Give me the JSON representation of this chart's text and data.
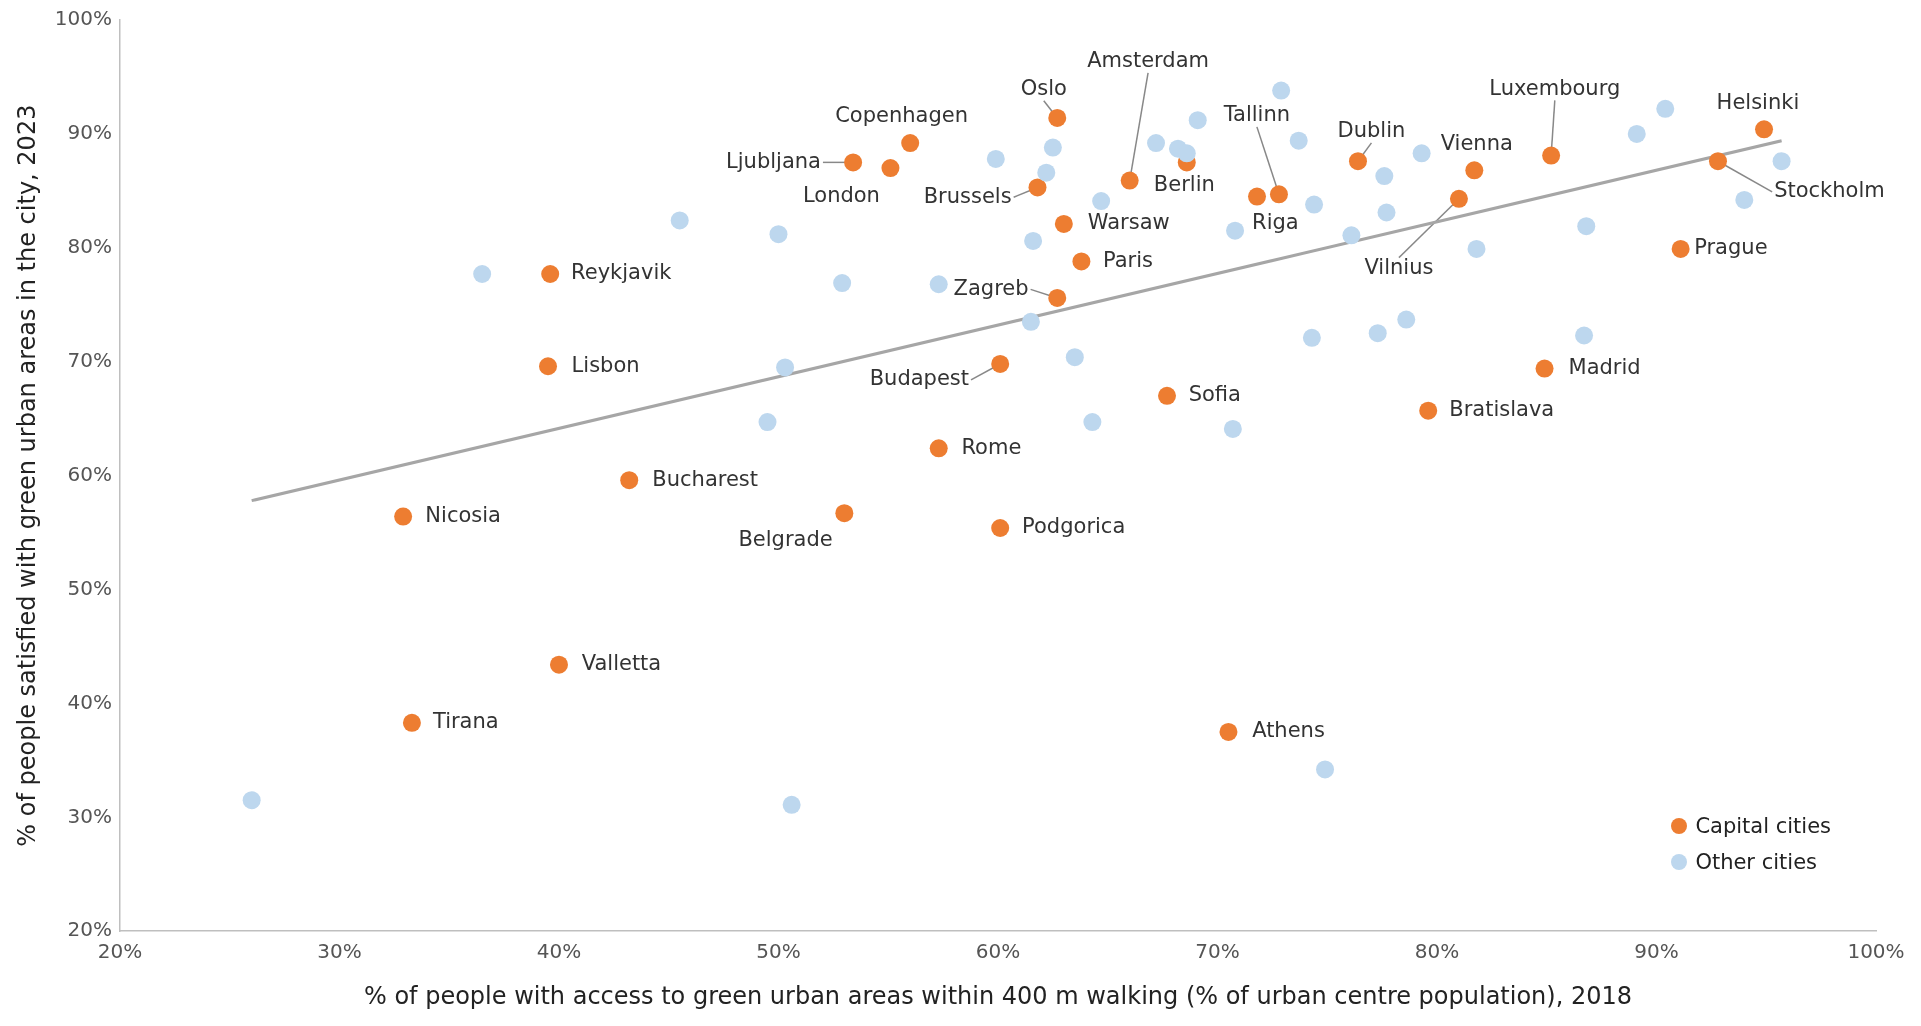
{
  "chart_data": {
    "type": "scatter",
    "xlabel": "% of people with access to green urban areas within 400 m walking (% of urban centre population), 2018",
    "ylabel": "% of people satisfied with green urban areas in the city, 2023",
    "xlim": [
      20,
      100
    ],
    "xticks": [
      {
        "value": 20,
        "label": "20%"
      },
      {
        "value": 30,
        "label": "30%"
      },
      {
        "value": 40,
        "label": "40%"
      },
      {
        "value": 50,
        "label": "50%"
      },
      {
        "value": 60,
        "label": "60%"
      },
      {
        "value": 70,
        "label": "70%"
      },
      {
        "value": 80,
        "label": "80%"
      },
      {
        "value": 90,
        "label": "90%"
      },
      {
        "value": 100,
        "label": "100%"
      }
    ],
    "ylim": [
      20,
      100
    ],
    "yticks": [
      {
        "value": 20,
        "label": "20%"
      },
      {
        "value": 30,
        "label": "30%"
      },
      {
        "value": 40,
        "label": "40%"
      },
      {
        "value": 50,
        "label": "50%"
      },
      {
        "value": 60,
        "label": "60%"
      },
      {
        "value": 70,
        "label": "70%"
      },
      {
        "value": 80,
        "label": "80%"
      },
      {
        "value": 90,
        "label": "90%"
      },
      {
        "value": 100,
        "label": "100%"
      }
    ],
    "grid": false,
    "legend": "bottom right",
    "marker": "circle",
    "series": [
      {
        "type": "line",
        "color": "#a6a6a6",
        "x": [
          26.0,
          95.7
        ],
        "values": [
          57.8,
          89.4
        ],
        "marker": "none"
      },
      {
        "name": "Other cities",
        "color": "#bdd7ee",
        "x": [
          36.5,
          45.5,
          50.0,
          52.9,
          50.3,
          49.5,
          26.0,
          50.6,
          59.9,
          62.5,
          62.2,
          61.6,
          57.3,
          61.5,
          63.5,
          64.3,
          64.7,
          67.2,
          68.2,
          68.6,
          69.1,
          72.9,
          73.7,
          70.8,
          70.7,
          74.4,
          74.3,
          74.9,
          76.1,
          77.6,
          77.7,
          77.3,
          78.6,
          79.3,
          81.8,
          86.8,
          86.7,
          89.1,
          90.4,
          94.0,
          95.7
        ],
        "values": [
          77.7,
          82.4,
          81.2,
          76.9,
          69.5,
          64.7,
          31.5,
          31.1,
          87.8,
          88.8,
          86.6,
          80.6,
          76.8,
          73.5,
          70.4,
          64.7,
          84.1,
          89.2,
          88.7,
          88.3,
          91.2,
          93.8,
          89.4,
          81.5,
          64.1,
          83.8,
          72.1,
          34.2,
          81.1,
          86.3,
          83.1,
          72.5,
          73.7,
          88.3,
          79.9,
          81.9,
          72.3,
          90.0,
          92.2,
          84.2,
          87.6
        ]
      },
      {
        "name": "Capital cities",
        "color": "#ed7d31",
        "x": [
          62.7,
          56.0,
          53.4,
          55.1,
          61.8,
          66.0,
          68.6,
          63.0,
          63.8,
          62.7,
          72.8,
          71.8,
          76.4,
          81.7,
          81.0,
          85.2,
          94.9,
          92.8,
          91.1,
          84.9,
          79.6,
          67.7,
          60.1,
          57.3,
          60.1,
          53.0,
          43.2,
          32.9,
          39.6,
          39.5,
          40.0,
          33.3,
          70.5
        ],
        "values": [
          91.4,
          89.2,
          87.5,
          87.0,
          85.3,
          85.9,
          87.5,
          82.1,
          78.8,
          75.6,
          84.7,
          84.5,
          87.6,
          86.8,
          84.3,
          88.1,
          90.4,
          87.6,
          79.9,
          69.4,
          65.7,
          67.0,
          69.8,
          62.4,
          55.4,
          56.7,
          59.6,
          56.4,
          77.7,
          69.6,
          43.4,
          38.3,
          37.5
        ]
      }
    ],
    "annotations": [
      {
        "text": "Oslo",
        "x": 62.7,
        "y": 91.4
      },
      {
        "text": "Copenhagen",
        "x": 56.0,
        "y": 89.2
      },
      {
        "text": "Ljubljana",
        "x": 53.4,
        "y": 87.5
      },
      {
        "text": "London",
        "x": 55.1,
        "y": 87.0
      },
      {
        "text": "Brussels",
        "x": 61.8,
        "y": 85.3
      },
      {
        "text": "Amsterdam",
        "x": 66.0,
        "y": 85.9
      },
      {
        "text": "Berlin",
        "x": 68.6,
        "y": 87.5
      },
      {
        "text": "Warsaw",
        "x": 63.0,
        "y": 82.1
      },
      {
        "text": "Paris",
        "x": 63.8,
        "y": 78.8
      },
      {
        "text": "Zagreb",
        "x": 62.7,
        "y": 75.6
      },
      {
        "text": "Tallinn",
        "x": 72.8,
        "y": 84.7
      },
      {
        "text": "Riga",
        "x": 71.8,
        "y": 84.5
      },
      {
        "text": "Dublin",
        "x": 76.4,
        "y": 87.6
      },
      {
        "text": "Vienna",
        "x": 81.7,
        "y": 86.8
      },
      {
        "text": "Vilnius",
        "x": 81.0,
        "y": 84.3
      },
      {
        "text": "Luxembourg",
        "x": 85.2,
        "y": 88.1
      },
      {
        "text": "Helsinki",
        "x": 94.9,
        "y": 90.4
      },
      {
        "text": "Stockholm",
        "x": 92.8,
        "y": 87.6
      },
      {
        "text": "Prague",
        "x": 91.1,
        "y": 79.9
      },
      {
        "text": "Madrid",
        "x": 84.9,
        "y": 69.4
      },
      {
        "text": "Bratislava",
        "x": 79.6,
        "y": 65.7
      },
      {
        "text": "Sofia",
        "x": 67.7,
        "y": 67.0
      },
      {
        "text": "Budapest",
        "x": 60.1,
        "y": 69.8
      },
      {
        "text": "Rome",
        "x": 57.3,
        "y": 62.4
      },
      {
        "text": "Podgorica",
        "x": 60.1,
        "y": 55.4
      },
      {
        "text": "Belgrade",
        "x": 53.0,
        "y": 56.7
      },
      {
        "text": "Bucharest",
        "x": 43.2,
        "y": 59.6
      },
      {
        "text": "Nicosia",
        "x": 32.9,
        "y": 56.4
      },
      {
        "text": "Reykjavik",
        "x": 39.6,
        "y": 77.7
      },
      {
        "text": "Lisbon",
        "x": 39.5,
        "y": 69.6
      },
      {
        "text": "Valletta",
        "x": 40.0,
        "y": 43.4
      },
      {
        "text": "Tirana",
        "x": 33.3,
        "y": 38.3
      },
      {
        "text": "Athens",
        "x": 70.5,
        "y": 37.5
      }
    ]
  }
}
